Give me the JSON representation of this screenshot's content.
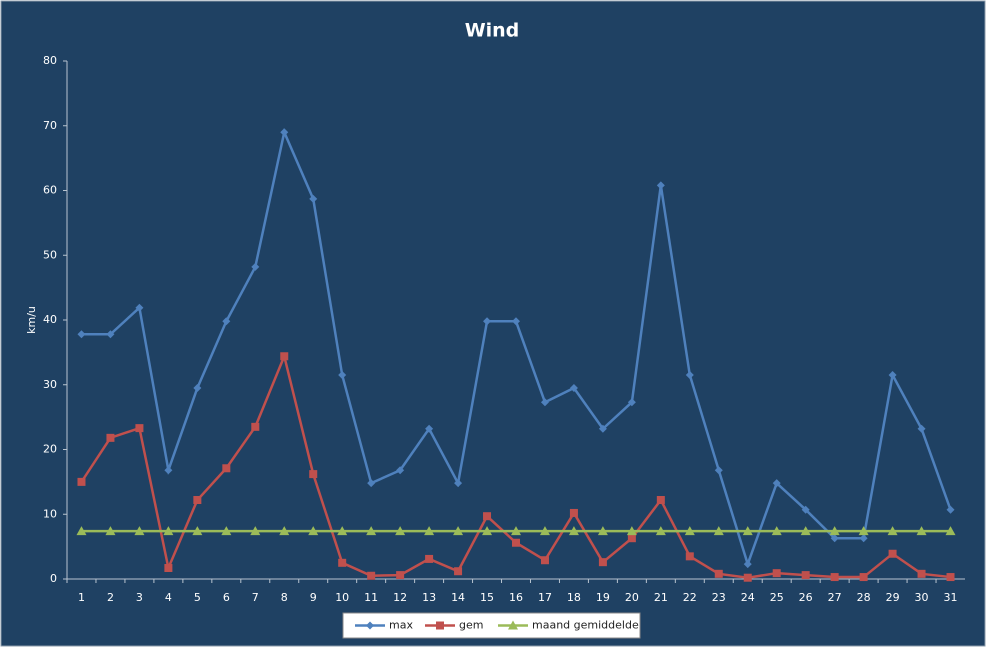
{
  "chart_data": {
    "type": "line",
    "title": "Wind",
    "y_label": "km/u",
    "categories": [
      "1",
      "2",
      "3",
      "4",
      "5",
      "6",
      "7",
      "8",
      "9",
      "10",
      "11",
      "12",
      "13",
      "14",
      "15",
      "16",
      "17",
      "18",
      "19",
      "20",
      "21",
      "22",
      "23",
      "24",
      "25",
      "26",
      "27",
      "28",
      "29",
      "30",
      "31"
    ],
    "series": [
      {
        "name": "max",
        "color": "#4f81bd",
        "marker": "diamond",
        "values": [
          37.8,
          37.8,
          41.9,
          16.8,
          29.5,
          39.8,
          48.2,
          69.0,
          58.7,
          31.5,
          14.8,
          16.8,
          23.2,
          14.8,
          39.8,
          39.8,
          27.3,
          29.5,
          23.2,
          27.3,
          60.8,
          31.5,
          16.8,
          2.3,
          14.8,
          10.7,
          6.3,
          6.3,
          31.5,
          23.2,
          10.7
        ]
      },
      {
        "name": "gem",
        "color": "#c0504d",
        "marker": "square",
        "values": [
          15.0,
          21.8,
          23.3,
          1.7,
          12.2,
          17.1,
          23.5,
          34.4,
          16.2,
          2.5,
          0.5,
          0.6,
          3.1,
          1.2,
          9.7,
          5.6,
          2.9,
          10.2,
          2.6,
          6.3,
          12.2,
          3.5,
          0.8,
          0.2,
          0.9,
          0.6,
          0.3,
          0.3,
          3.9,
          0.8,
          0.3
        ]
      },
      {
        "name": "maand gemiddelde",
        "color": "#9bbb59",
        "marker": "triangle",
        "values": [
          7.4,
          7.4,
          7.4,
          7.4,
          7.4,
          7.4,
          7.4,
          7.4,
          7.4,
          7.4,
          7.4,
          7.4,
          7.4,
          7.4,
          7.4,
          7.4,
          7.4,
          7.4,
          7.4,
          7.4,
          7.4,
          7.4,
          7.4,
          7.4,
          7.4,
          7.4,
          7.4,
          7.4,
          7.4,
          7.4,
          7.4
        ]
      }
    ],
    "ylim": [
      0,
      80
    ],
    "yticks": [
      0,
      10,
      20,
      30,
      40,
      50,
      60,
      70,
      80
    ],
    "legend": "bottom"
  }
}
